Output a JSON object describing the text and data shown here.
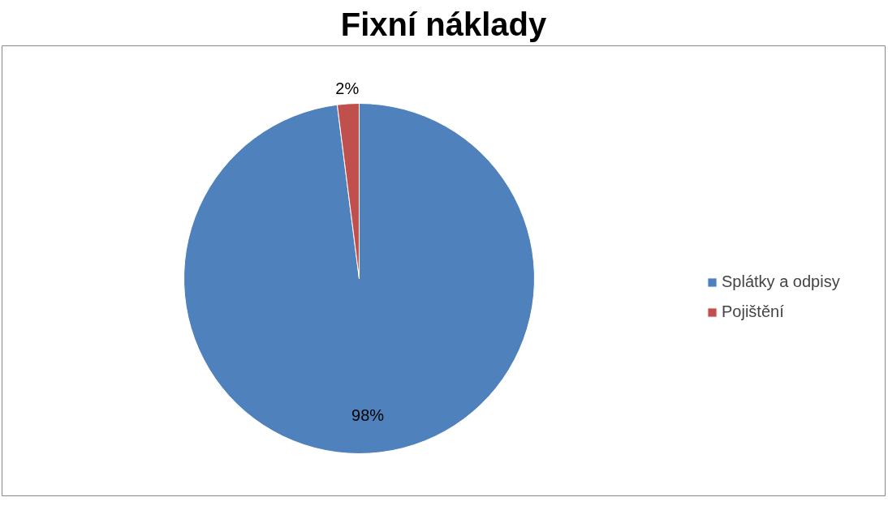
{
  "chart_data": {
    "type": "pie",
    "title": "Fixní náklady",
    "categories": [
      "Splátky a odpisy",
      "Pojištění"
    ],
    "values": [
      98,
      2
    ],
    "colors": [
      "#4f81bd",
      "#c0504d"
    ],
    "value_labels": [
      "98%",
      "2%"
    ],
    "legend": "right"
  }
}
